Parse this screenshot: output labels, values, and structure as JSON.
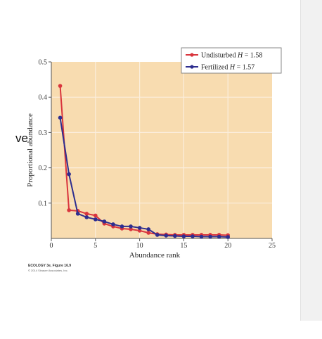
{
  "slide": {
    "text_fragment": "ve"
  },
  "figure_credit": {
    "line1": "ECOLOGY 3e, Figure 16.9",
    "line2": "© 2014 Sinauer Associates, Inc."
  },
  "colors": {
    "plot_background": "#f8dcb0",
    "gridline": "#fbeedd",
    "axis": "#555555",
    "undisturbed": "#d9353d",
    "fertilized": "#2e2e8f"
  },
  "chart_data": {
    "type": "line",
    "title": "",
    "xlabel": "Abundance rank",
    "ylabel": "Proportional abundance",
    "xlim": [
      0,
      25
    ],
    "ylim": [
      0,
      0.5
    ],
    "x_ticks": [
      0,
      5,
      10,
      15,
      20,
      25
    ],
    "y_ticks": [
      0.1,
      0.2,
      0.3,
      0.4,
      0.5
    ],
    "grid": true,
    "legend_position": "top-right",
    "series": [
      {
        "name": "Undisturbed H = 1.58",
        "legend_prefix": "Undisturbed ",
        "legend_var": "H",
        "legend_suffix": " = 1.58",
        "color": "#d9353d",
        "x": [
          1,
          2,
          3,
          4,
          5,
          6,
          7,
          8,
          9,
          10,
          11,
          12,
          13,
          14,
          15,
          16,
          17,
          18,
          19,
          20
        ],
        "y": [
          0.432,
          0.08,
          0.078,
          0.07,
          0.065,
          0.042,
          0.034,
          0.028,
          0.026,
          0.022,
          0.016,
          0.012,
          0.011,
          0.01,
          0.01,
          0.01,
          0.01,
          0.01,
          0.01,
          0.009
        ]
      },
      {
        "name": "Fertilized H = 1.57",
        "legend_prefix": "Fertilized ",
        "legend_var": "H",
        "legend_suffix": " = 1.57",
        "color": "#2e2e8f",
        "x": [
          1,
          2,
          3,
          4,
          5,
          6,
          7,
          8,
          9,
          10,
          11,
          12,
          13,
          14,
          15,
          16,
          17,
          18,
          19,
          20
        ],
        "y": [
          0.342,
          0.182,
          0.07,
          0.06,
          0.054,
          0.048,
          0.04,
          0.034,
          0.034,
          0.03,
          0.026,
          0.01,
          0.008,
          0.007,
          0.006,
          0.006,
          0.005,
          0.005,
          0.005,
          0.004
        ]
      }
    ]
  }
}
